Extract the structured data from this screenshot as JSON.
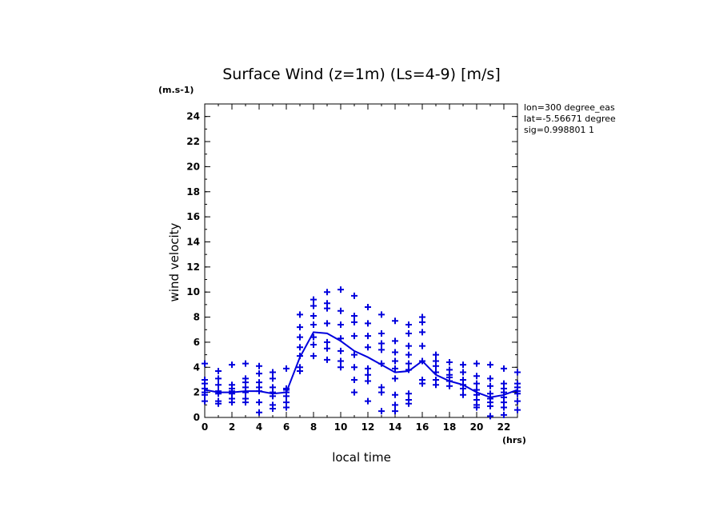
{
  "chart_data": {
    "type": "scatter",
    "title": "Surface Wind (z=1m) (Ls=4-9) [m/s]",
    "y_unit": "(m.s-1)",
    "x_unit": "(hrs)",
    "xlabel": "local time",
    "ylabel": "wind velocity",
    "xlim": [
      0,
      23
    ],
    "ylim": [
      0,
      25
    ],
    "xticks": [
      0,
      2,
      4,
      6,
      8,
      10,
      12,
      14,
      16,
      18,
      20,
      22
    ],
    "yticks": [
      0,
      2,
      4,
      6,
      8,
      10,
      12,
      14,
      16,
      18,
      20,
      22,
      24
    ],
    "annotations": [
      "lon=300 degree_eas",
      "lat=-5.56671 degree",
      "sig=0.998801 1"
    ],
    "color": "#0000dd",
    "grid": false,
    "mean_line": {
      "x": [
        0,
        1,
        2,
        3,
        4,
        5,
        6,
        7,
        8,
        9,
        10,
        11,
        12,
        13,
        14,
        15,
        16,
        17,
        18,
        19,
        20,
        21,
        22,
        23
      ],
      "y": [
        2.2,
        2.0,
        2.0,
        2.1,
        2.1,
        1.9,
        2.0,
        4.8,
        6.8,
        6.7,
        6.1,
        5.3,
        4.8,
        4.2,
        3.6,
        3.7,
        4.5,
        3.4,
        2.9,
        2.6,
        2.0,
        1.6,
        1.8,
        2.2
      ]
    },
    "points": [
      {
        "x": 0,
        "y": [
          4.3,
          3.0,
          2.7,
          2.3,
          2.0,
          1.8,
          1.3
        ]
      },
      {
        "x": 1,
        "y": [
          3.7,
          3.1,
          2.6,
          2.1,
          1.9,
          1.3,
          1.1
        ]
      },
      {
        "x": 2,
        "y": [
          4.2,
          2.6,
          2.3,
          2.1,
          1.9,
          1.5,
          1.2
        ]
      },
      {
        "x": 3,
        "y": [
          4.3,
          3.1,
          2.8,
          2.4,
          2.0,
          1.5,
          1.2
        ]
      },
      {
        "x": 4,
        "y": [
          4.1,
          3.5,
          2.8,
          2.4,
          2.1,
          1.2,
          0.4
        ]
      },
      {
        "x": 5,
        "y": [
          3.6,
          3.1,
          2.4,
          2.0,
          1.7,
          1.0,
          0.7
        ]
      },
      {
        "x": 6,
        "y": [
          3.9,
          2.3,
          2.2,
          2.0,
          1.7,
          1.2,
          0.8
        ]
      },
      {
        "x": 7,
        "y": [
          8.2,
          7.2,
          6.4,
          5.6,
          4.9,
          4.0,
          3.7
        ]
      },
      {
        "x": 8,
        "y": [
          9.4,
          8.9,
          8.1,
          7.4,
          6.4,
          5.8,
          4.9
        ]
      },
      {
        "x": 9,
        "y": [
          10.0,
          9.1,
          8.7,
          7.5,
          6.0,
          5.5,
          4.6
        ]
      },
      {
        "x": 10,
        "y": [
          10.2,
          8.5,
          7.4,
          6.3,
          5.3,
          4.5,
          4.0
        ]
      },
      {
        "x": 11,
        "y": [
          9.7,
          8.1,
          7.6,
          6.5,
          5.0,
          4.0,
          3.0,
          2.0
        ]
      },
      {
        "x": 12,
        "y": [
          8.8,
          7.5,
          6.5,
          5.6,
          3.9,
          3.4,
          2.9,
          1.3
        ]
      },
      {
        "x": 13,
        "y": [
          8.2,
          6.7,
          5.9,
          5.4,
          4.3,
          2.4,
          2.0,
          0.5
        ]
      },
      {
        "x": 14,
        "y": [
          7.7,
          6.1,
          5.2,
          4.5,
          3.9,
          3.1,
          1.8,
          1.0,
          0.5
        ]
      },
      {
        "x": 15,
        "y": [
          7.4,
          6.7,
          5.7,
          5.0,
          4.3,
          3.8,
          1.9,
          1.4,
          1.1
        ]
      },
      {
        "x": 16,
        "y": [
          8.0,
          7.6,
          6.8,
          5.7,
          4.5,
          3.0,
          2.7
        ]
      },
      {
        "x": 17,
        "y": [
          5.0,
          4.5,
          4.1,
          3.6,
          3.0,
          2.6
        ]
      },
      {
        "x": 18,
        "y": [
          4.4,
          3.8,
          3.4,
          3.2,
          2.9,
          2.5
        ]
      },
      {
        "x": 19,
        "y": [
          4.2,
          3.6,
          3.0,
          2.6,
          2.3,
          1.8
        ]
      },
      {
        "x": 20,
        "y": [
          4.3,
          3.3,
          2.7,
          2.2,
          1.8,
          1.4,
          1.0,
          0.8
        ]
      },
      {
        "x": 21,
        "y": [
          4.2,
          3.1,
          2.5,
          1.9,
          1.5,
          1.2,
          0.9,
          0.1
        ]
      },
      {
        "x": 22,
        "y": [
          3.9,
          2.7,
          2.3,
          2.0,
          1.6,
          1.2,
          0.8,
          0.2
        ]
      },
      {
        "x": 23,
        "y": [
          3.6,
          2.7,
          2.4,
          2.1,
          1.9,
          1.3,
          0.6
        ]
      }
    ]
  }
}
